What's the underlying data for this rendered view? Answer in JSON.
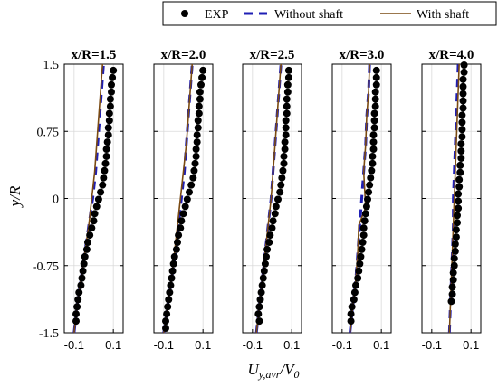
{
  "chart_data": {
    "type": "line",
    "legend": {
      "placement": "top-right",
      "entries": [
        {
          "label": "EXP",
          "marker": "circle",
          "color": "#000000"
        },
        {
          "label": "Without shaft",
          "line": "dashed",
          "color": "#1f1fb4"
        },
        {
          "label": "With shaft",
          "line": "solid",
          "color": "#7a4a12"
        }
      ]
    },
    "ylabel": "y/R",
    "xlabel_main": "U",
    "xlabel_sub": "y,avr",
    "xlabel_tail": "/V",
    "xlabel_tail_sub": "0",
    "ylim": [
      -1.5,
      1.5
    ],
    "yticks": [
      1.5,
      0.75,
      0,
      -0.75,
      -1.5
    ],
    "ytick_labels": [
      "1.5",
      "0.75",
      "0",
      "-0.75",
      "-1.5"
    ],
    "xlim": [
      -0.15,
      0.15
    ],
    "xticks": [
      -0.1,
      0.1
    ],
    "xtick_labels": [
      "-0.1",
      "0.1"
    ],
    "grid": true,
    "panels": [
      {
        "title": "x/R=1.5",
        "exp": {
          "y": [
            1.43,
            1.35,
            1.27,
            1.19,
            1.11,
            1.03,
            0.95,
            0.87,
            0.79,
            0.71,
            0.63,
            0.55,
            0.47,
            0.39,
            0.31,
            0.23,
            0.15,
            0.07,
            -0.01,
            -0.09,
            -0.17,
            -0.25,
            -0.33,
            -0.41,
            -0.49,
            -0.57,
            -0.65,
            -0.73,
            -0.81,
            -0.89,
            -0.97,
            -1.05,
            -1.13,
            -1.21,
            -1.29,
            -1.37
          ],
          "x": [
            0.1,
            0.095,
            0.09,
            0.09,
            0.085,
            0.085,
            0.08,
            0.08,
            0.075,
            0.075,
            0.07,
            0.065,
            0.065,
            0.06,
            0.055,
            0.05,
            0.045,
            0.035,
            0.025,
            0.015,
            0.005,
            0.0,
            -0.01,
            -0.02,
            -0.03,
            -0.035,
            -0.045,
            -0.05,
            -0.055,
            -0.06,
            -0.065,
            -0.075,
            -0.08,
            -0.085,
            -0.09,
            -0.09
          ]
        },
        "without_shaft": {
          "y": [
            -1.5,
            -1.2,
            -0.9,
            -0.6,
            -0.3,
            0,
            0.3,
            0.6,
            0.9,
            1.2,
            1.5
          ],
          "x": [
            -0.1,
            -0.085,
            -0.065,
            -0.045,
            -0.025,
            -0.005,
            0.01,
            0.02,
            0.03,
            0.04,
            0.05
          ]
        },
        "with_shaft": {
          "y": [
            -1.5,
            -1.2,
            -0.9,
            -0.6,
            -0.3,
            0,
            0.3,
            0.6,
            0.9,
            1.2,
            1.5
          ],
          "x": [
            -0.1,
            -0.085,
            -0.065,
            -0.045,
            -0.025,
            -0.01,
            0.005,
            0.015,
            0.025,
            0.035,
            0.045
          ]
        }
      },
      {
        "title": "x/R=2.0",
        "exp": {
          "y": [
            1.43,
            1.35,
            1.27,
            1.19,
            1.11,
            1.03,
            0.95,
            0.87,
            0.79,
            0.71,
            0.63,
            0.55,
            0.47,
            0.39,
            0.31,
            0.23,
            0.15,
            0.07,
            -0.01,
            -0.09,
            -0.17,
            -0.25,
            -0.33,
            -0.41,
            -0.49,
            -0.57,
            -0.65,
            -0.73,
            -0.81,
            -0.89,
            -0.97,
            -1.05,
            -1.13,
            -1.21,
            -1.29,
            -1.37,
            -1.45
          ],
          "x": [
            0.1,
            0.095,
            0.09,
            0.085,
            0.085,
            0.08,
            0.08,
            0.075,
            0.075,
            0.07,
            0.07,
            0.065,
            0.065,
            0.06,
            0.055,
            0.05,
            0.04,
            0.03,
            0.02,
            0.01,
            0.0,
            -0.01,
            -0.015,
            -0.025,
            -0.03,
            -0.035,
            -0.045,
            -0.05,
            -0.055,
            -0.06,
            -0.065,
            -0.07,
            -0.075,
            -0.08,
            -0.085,
            -0.09,
            -0.09
          ]
        },
        "without_shaft": {
          "y": [
            -1.5,
            -1.2,
            -0.9,
            -0.6,
            -0.3,
            0,
            0.3,
            0.6,
            0.9,
            1.2,
            1.5
          ],
          "x": [
            -0.1,
            -0.08,
            -0.06,
            -0.04,
            -0.025,
            -0.01,
            0.005,
            0.015,
            0.025,
            0.035,
            0.045
          ]
        },
        "with_shaft": {
          "y": [
            -1.5,
            -1.2,
            -0.9,
            -0.6,
            -0.3,
            0,
            0.3,
            0.6,
            0.9,
            1.2,
            1.5
          ],
          "x": [
            -0.1,
            -0.08,
            -0.06,
            -0.045,
            -0.03,
            -0.015,
            0.0,
            0.015,
            0.025,
            0.035,
            0.045
          ]
        }
      },
      {
        "title": "x/R=2.5",
        "exp": {
          "y": [
            1.43,
            1.35,
            1.27,
            1.19,
            1.11,
            1.03,
            0.95,
            0.87,
            0.79,
            0.71,
            0.63,
            0.55,
            0.47,
            0.39,
            0.31,
            0.23,
            0.15,
            0.07,
            -0.01,
            -0.09,
            -0.17,
            -0.25,
            -0.33,
            -0.41,
            -0.49,
            -0.57,
            -0.65,
            -0.73,
            -0.81,
            -0.89,
            -0.97,
            -1.05,
            -1.13,
            -1.21,
            -1.29,
            -1.37
          ],
          "x": [
            0.085,
            0.085,
            0.08,
            0.08,
            0.075,
            0.075,
            0.075,
            0.07,
            0.07,
            0.07,
            0.065,
            0.065,
            0.06,
            0.06,
            0.055,
            0.05,
            0.045,
            0.04,
            0.03,
            0.02,
            0.015,
            0.005,
            0.0,
            -0.01,
            -0.015,
            -0.025,
            -0.03,
            -0.035,
            -0.04,
            -0.045,
            -0.05,
            -0.055,
            -0.06,
            -0.065,
            -0.07,
            -0.065
          ]
        },
        "without_shaft": {
          "y": [
            -1.5,
            -1.2,
            -0.9,
            -0.6,
            -0.3,
            0,
            0.3,
            0.6,
            0.9,
            1.2,
            1.5
          ],
          "x": [
            -0.08,
            -0.065,
            -0.05,
            -0.035,
            -0.02,
            -0.005,
            0.005,
            0.015,
            0.025,
            0.035,
            0.045
          ]
        },
        "with_shaft": {
          "y": [
            -1.5,
            -1.2,
            -0.9,
            -0.6,
            -0.3,
            0,
            0.3,
            0.6,
            0.9,
            1.2,
            1.5
          ],
          "x": [
            -0.08,
            -0.065,
            -0.05,
            -0.035,
            -0.02,
            -0.005,
            0.005,
            0.015,
            0.025,
            0.035,
            0.045
          ]
        }
      },
      {
        "title": "x/R=3.0",
        "exp": {
          "y": [
            1.43,
            1.35,
            1.27,
            1.19,
            1.11,
            1.03,
            0.95,
            0.87,
            0.79,
            0.71,
            0.63,
            0.55,
            0.47,
            0.39,
            0.31,
            0.23,
            0.15,
            0.07,
            -0.01,
            -0.09,
            -0.17,
            -0.25,
            -0.33,
            -0.41,
            -0.49,
            -0.57,
            -0.65,
            -0.73,
            -0.81,
            -0.89,
            -0.97,
            -1.05,
            -1.13,
            -1.21,
            -1.29,
            -1.37
          ],
          "x": [
            0.075,
            0.075,
            0.075,
            0.07,
            0.07,
            0.07,
            0.065,
            0.065,
            0.065,
            0.06,
            0.06,
            0.06,
            0.055,
            0.055,
            0.05,
            0.045,
            0.04,
            0.035,
            0.03,
            0.025,
            0.02,
            0.015,
            0.01,
            0.01,
            0.005,
            0.0,
            -0.005,
            -0.01,
            -0.015,
            -0.02,
            -0.03,
            -0.035,
            -0.04,
            -0.05,
            -0.055,
            -0.055
          ]
        },
        "without_shaft": {
          "y": [
            -1.5,
            -1.2,
            -0.9,
            -0.6,
            -0.3,
            0,
            0.3,
            0.6,
            0.9,
            1.2,
            1.5
          ],
          "x": [
            -0.06,
            -0.045,
            -0.03,
            -0.02,
            -0.01,
            0.0,
            0.01,
            0.02,
            0.025,
            0.035,
            0.04
          ]
        },
        "with_shaft": {
          "y": [
            -1.5,
            -1.2,
            -0.9,
            -0.6,
            -0.3,
            -0.1,
            0.1,
            0.3,
            0.6,
            0.9,
            1.2,
            1.5
          ],
          "x": [
            -0.06,
            -0.045,
            -0.03,
            -0.02,
            -0.015,
            0.02,
            0.015,
            0.01,
            0.02,
            0.025,
            0.035,
            0.04
          ]
        }
      },
      {
        "title": "x/R=4.0",
        "exp": {
          "y": [
            1.49,
            1.41,
            1.33,
            1.25,
            1.17,
            1.09,
            1.01,
            0.93,
            0.85,
            0.77,
            0.69,
            0.61,
            0.53,
            0.45,
            0.37,
            0.29,
            0.21,
            0.13,
            0.05,
            -0.03,
            -0.11,
            -0.19,
            -0.27,
            -0.35,
            -0.43,
            -0.51,
            -0.59,
            -0.67,
            -0.75,
            -0.83,
            -0.91,
            -0.99,
            -1.07,
            -1.15
          ],
          "x": [
            0.065,
            0.065,
            0.06,
            0.06,
            0.06,
            0.06,
            0.06,
            0.055,
            0.055,
            0.055,
            0.055,
            0.05,
            0.05,
            0.05,
            0.045,
            0.045,
            0.04,
            0.04,
            0.035,
            0.035,
            0.035,
            0.03,
            0.03,
            0.025,
            0.025,
            0.02,
            0.02,
            0.015,
            0.015,
            0.01,
            0.01,
            0.005,
            0.005,
            0.0
          ]
        },
        "without_shaft": {
          "y": [
            -1.5,
            -1.2,
            -0.9,
            -0.6,
            -0.3,
            0,
            0.3,
            0.6,
            0.9,
            1.2,
            1.5
          ],
          "x": [
            -0.01,
            -0.005,
            0.0,
            0.005,
            0.01,
            0.01,
            0.015,
            0.02,
            0.025,
            0.03,
            0.035
          ]
        },
        "with_shaft": {
          "y": [
            -1.5,
            -1.2,
            -0.9,
            -0.6,
            -0.3,
            0,
            0.3,
            0.6,
            0.9,
            1.2,
            1.5
          ],
          "x": [
            -0.01,
            -0.005,
            0.0,
            0.005,
            0.01,
            0.015,
            0.02,
            0.025,
            0.03,
            0.035,
            0.04
          ]
        }
      }
    ]
  }
}
